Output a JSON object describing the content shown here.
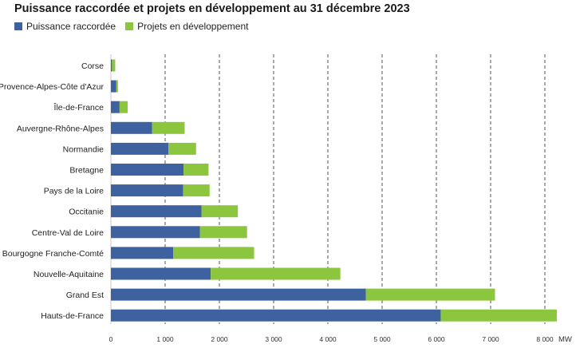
{
  "chart_data": {
    "type": "bar",
    "orientation": "horizontal",
    "stacked": true,
    "title": "Puissance raccordée et projets en développement au 31 décembre 2023",
    "xlabel": "MW",
    "ylabel": "",
    "xlim": [
      0,
      8000
    ],
    "x_ticks": [
      0,
      1000,
      2000,
      3000,
      4000,
      5000,
      6000,
      7000,
      8000
    ],
    "x_tick_labels": [
      "0",
      "1 000",
      "2 000",
      "3 000",
      "4 000",
      "5 000",
      "6 000",
      "7 000",
      "8 000"
    ],
    "grid": "vertical dashed",
    "legend": "top-left",
    "categories": [
      "Corse",
      "Provence-Alpes-Côte d'Azur",
      "Île-de-France",
      "Auvergne-Rhône-Alpes",
      "Normandie",
      "Bretagne",
      "Pays de la Loire",
      "Occitanie",
      "Centre-Val de Loire",
      "Bourgogne Franche-Comté",
      "Nouvelle-Aquitaine",
      "Grand Est",
      "Hauts-de-France"
    ],
    "series": [
      {
        "name": "Puissance raccordée",
        "color": "#3e62a0",
        "values": [
          20,
          100,
          160,
          760,
          1060,
          1340,
          1330,
          1670,
          1640,
          1150,
          1840,
          4700,
          6080
        ]
      },
      {
        "name": "Projets en développement",
        "color": "#8cc63f",
        "values": [
          60,
          30,
          150,
          600,
          510,
          460,
          490,
          670,
          870,
          1490,
          2390,
          2380,
          2140
        ]
      }
    ]
  }
}
